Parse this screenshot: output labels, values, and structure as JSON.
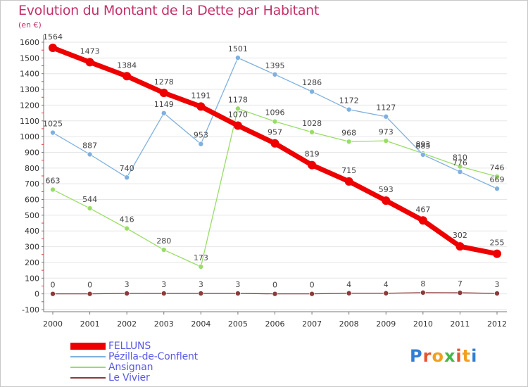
{
  "header": {
    "title": "Evolution du Montant de la Dette par Habitant",
    "subtitle": "(en €)"
  },
  "logo": {
    "text": "Proxiti",
    "colors": [
      "#2f7fd6",
      "#e8532b",
      "#f0a020",
      "#45b649",
      "#e8532b",
      "#f0a020",
      "#2f7fd6"
    ]
  },
  "chart_data": {
    "type": "line",
    "title": "Evolution du Montant de la Dette par Habitant",
    "ylabel": "(en €)",
    "xlabel": "",
    "ylim": [
      -100,
      1600
    ],
    "yticks": [
      -100,
      0,
      100,
      200,
      300,
      400,
      500,
      600,
      700,
      800,
      900,
      1000,
      1100,
      1200,
      1300,
      1400,
      1500,
      1600
    ],
    "x": [
      "2000",
      "2001",
      "2002",
      "2003",
      "2004",
      "2005",
      "2006",
      "2007",
      "2008",
      "2009",
      "2010",
      "2011",
      "2012"
    ],
    "legend_position": "bottom-left",
    "series": [
      {
        "name": "FELLUNS",
        "color": "#ee0000",
        "width": 7,
        "marker": 6,
        "labels": [
          "1564",
          "1473",
          "1384",
          "1278",
          "1191",
          "1070",
          "957",
          "819",
          "715",
          "593",
          "467",
          "302",
          "255"
        ],
        "values": [
          1564,
          1473,
          1384,
          1278,
          1191,
          1070,
          957,
          819,
          715,
          593,
          467,
          302,
          255
        ]
      },
      {
        "name": "Pézilla-de-Conflent",
        "color": "#7fb0e0",
        "width": 1.3,
        "marker": 3.5,
        "labels": [
          "1025",
          "887",
          "740",
          "1149",
          "953",
          "1501",
          "1395",
          "1286",
          "1172",
          "1127",
          "885",
          "776",
          "669"
        ],
        "values": [
          1025,
          887,
          740,
          1149,
          953,
          1501,
          1395,
          1286,
          1172,
          1127,
          885,
          776,
          669
        ]
      },
      {
        "name": "Ansignan",
        "color": "#99dd66",
        "width": 1.3,
        "marker": 3.5,
        "labels": [
          "663",
          "544",
          "416",
          "280",
          "173",
          "1178",
          "1096",
          "1028",
          "968",
          "973",
          "893",
          "810",
          "746"
        ],
        "values": [
          663,
          544,
          416,
          280,
          173,
          1178,
          1096,
          1028,
          968,
          973,
          893,
          810,
          746
        ]
      },
      {
        "name": "Le Vivier",
        "color": "#8b3a3a",
        "width": 1.3,
        "marker": 3.5,
        "labels": [
          "0",
          "0",
          "3",
          "3",
          "3",
          "3",
          "0",
          "0",
          "4",
          "4",
          "8",
          "7",
          "3"
        ],
        "values": [
          0,
          0,
          3,
          3,
          3,
          3,
          0,
          0,
          4,
          4,
          8,
          7,
          3
        ]
      }
    ]
  }
}
